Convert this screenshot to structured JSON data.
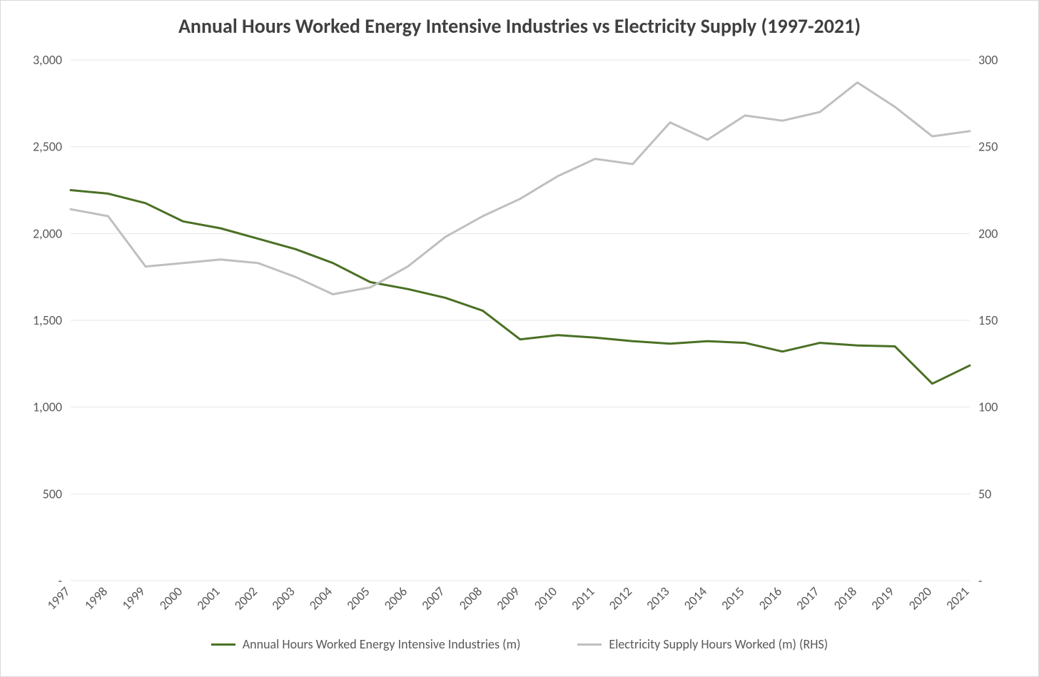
{
  "chart": {
    "type": "line-dual-axis",
    "title": "Annual Hours Worked Energy Intensive Industries vs Electricity Supply (1997-2021)",
    "title_fontsize": 28,
    "title_color": "#404040",
    "background_color": "#ffffff",
    "frame_border_color": "#d9d9d9",
    "grid_color": "#e6e6e6",
    "tick_label_fontsize": 18,
    "tick_label_color": "#595959",
    "x": {
      "categories": [
        "1997",
        "1998",
        "1999",
        "2000",
        "2001",
        "2002",
        "2003",
        "2004",
        "2005",
        "2006",
        "2007",
        "2008",
        "2009",
        "2010",
        "2011",
        "2012",
        "2013",
        "2014",
        "2015",
        "2016",
        "2017",
        "2018",
        "2019",
        "2020",
        "2021"
      ],
      "label_rotation_deg": -45
    },
    "y_left": {
      "min": 0,
      "max": 3000,
      "tick_step": 500,
      "tick_labels": [
        "-",
        "500",
        "1,000",
        "1,500",
        "2,000",
        "2,500",
        "3,000"
      ]
    },
    "y_right": {
      "min": 0,
      "max": 300,
      "tick_step": 50,
      "tick_labels": [
        "-",
        "50",
        "100",
        "150",
        "200",
        "250",
        "300"
      ]
    },
    "series": [
      {
        "name": "Annual Hours Worked Energy Intensive Industries (m)",
        "axis": "left",
        "color": "#4a7024",
        "line_width": 3,
        "values": [
          2250,
          2230,
          2175,
          2070,
          2030,
          1970,
          1910,
          1830,
          1720,
          1680,
          1630,
          1555,
          1390,
          1415,
          1400,
          1380,
          1365,
          1380,
          1370,
          1320,
          1370,
          1355,
          1350,
          1135,
          1240
        ]
      },
      {
        "name": "Electricity Supply Hours Worked (m) (RHS)",
        "axis": "right",
        "color": "#bfbfbf",
        "line_width": 3,
        "values": [
          214,
          210,
          181,
          183,
          185,
          183,
          175,
          165,
          169,
          181,
          198,
          210,
          220,
          233,
          243,
          240,
          264,
          254,
          268,
          265,
          270,
          287,
          273,
          256,
          259
        ]
      }
    ],
    "legend": {
      "position": "bottom-center",
      "fontsize": 18,
      "swatch_width": 34
    }
  }
}
